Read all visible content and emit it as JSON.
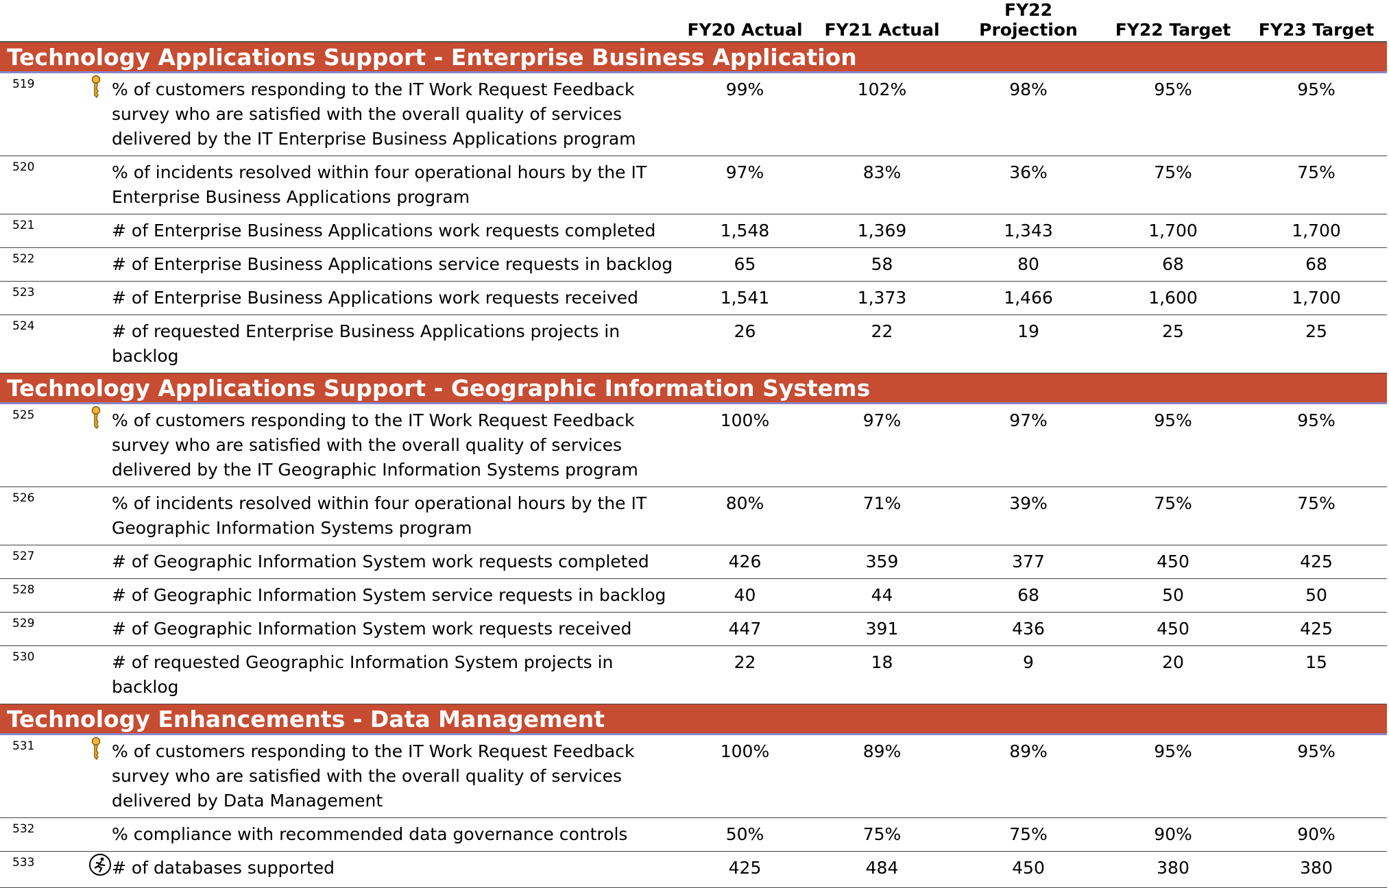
{
  "columns": [
    "FY20 Actual",
    "FY21 Actual",
    "FY22 Projection",
    "FY22 Target",
    "FY23 Target"
  ],
  "sections": [
    {
      "title": "Technology Applications Support - Enterprise Business Application",
      "rows": [
        {
          "id": "519",
          "icon": "key",
          "text": "% of customers responding to the IT Work Request Feedback survey who are satisfied with the overall quality of services delivered by the IT Enterprise Business Applications program",
          "values": [
            "99%",
            "102%",
            "98%",
            "95%",
            "95%"
          ]
        },
        {
          "id": "520",
          "text": "% of incidents resolved within four operational hours by the IT Enterprise Business Applications program",
          "values": [
            "97%",
            "83%",
            "36%",
            "75%",
            "75%"
          ]
        },
        {
          "id": "521",
          "text": "# of Enterprise Business Applications work requests completed",
          "values": [
            "1,548",
            "1,369",
            "1,343",
            "1,700",
            "1,700"
          ]
        },
        {
          "id": "522",
          "text": "# of Enterprise Business Applications service requests in backlog",
          "values": [
            "65",
            "58",
            "80",
            "68",
            "68"
          ]
        },
        {
          "id": "523",
          "text": "# of Enterprise Business Applications work requests received",
          "values": [
            "1,541",
            "1,373",
            "1,466",
            "1,600",
            "1,700"
          ]
        },
        {
          "id": "524",
          "text": "# of requested Enterprise Business Applications projects in backlog",
          "values": [
            "26",
            "22",
            "19",
            "25",
            "25"
          ]
        }
      ]
    },
    {
      "title": "Technology Applications Support - Geographic Information Systems",
      "rows": [
        {
          "id": "525",
          "icon": "key",
          "text": "% of customers responding to the IT Work Request Feedback survey who are satisfied with the overall quality of services delivered by the IT Geographic Information Systems program",
          "values": [
            "100%",
            "97%",
            "97%",
            "95%",
            "95%"
          ]
        },
        {
          "id": "526",
          "text": "% of incidents resolved within four operational hours by the IT Geographic Information Systems program",
          "values": [
            "80%",
            "71%",
            "39%",
            "75%",
            "75%"
          ]
        },
        {
          "id": "527",
          "text": "# of Geographic Information System work requests completed",
          "values": [
            "426",
            "359",
            "377",
            "450",
            "425"
          ]
        },
        {
          "id": "528",
          "text": "# of Geographic Information System service requests in backlog",
          "values": [
            "40",
            "44",
            "68",
            "50",
            "50"
          ]
        },
        {
          "id": "529",
          "text": "# of Geographic Information System work requests received",
          "values": [
            "447",
            "391",
            "436",
            "450",
            "425"
          ]
        },
        {
          "id": "530",
          "text": "# of requested Geographic Information System projects in backlog",
          "values": [
            "22",
            "18",
            "9",
            "20",
            "15"
          ]
        }
      ]
    },
    {
      "title": "Technology Enhancements - Data Management",
      "rows": [
        {
          "id": "531",
          "icon": "key",
          "text": "% of customers responding to the IT Work Request Feedback survey who are satisfied with the overall quality of services delivered by Data Management",
          "values": [
            "100%",
            "89%",
            "89%",
            "95%",
            "95%"
          ]
        },
        {
          "id": "532",
          "text": "% compliance with recommended data governance controls",
          "values": [
            "50%",
            "75%",
            "75%",
            "90%",
            "90%"
          ]
        },
        {
          "id": "533",
          "icon": "runner",
          "text": "# of databases supported",
          "values": [
            "425",
            "484",
            "450",
            "380",
            "380"
          ]
        }
      ]
    }
  ]
}
